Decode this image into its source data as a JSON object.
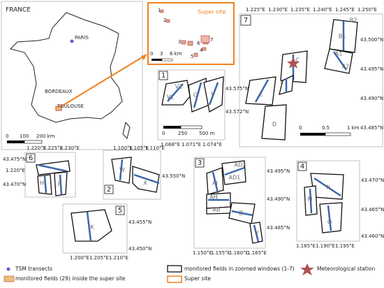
{
  "france": {
    "title": "FRANCE",
    "cities": [
      "PARIS",
      "BORDEAUX",
      "TOULOUSE"
    ],
    "scale": [
      "0",
      "100",
      "200 km"
    ]
  },
  "super_site": {
    "title": "Super site",
    "sites": [
      "1",
      "2",
      "3",
      "4",
      "5",
      "6",
      "7"
    ],
    "scale": [
      "0",
      "3",
      "6 km"
    ]
  },
  "panels": [
    {
      "number": "1",
      "fields": [
        "V2",
        "V1",
        "G",
        "U"
      ],
      "lon": [
        "1.068°E",
        "1.071°E",
        "1.074°E"
      ],
      "lat": [
        "43.575°N",
        "43.572°N"
      ],
      "scale": [
        "0",
        "250",
        "500 m"
      ]
    },
    {
      "number": "2",
      "fields": [
        "W",
        "X"
      ],
      "lon": [
        "1.100°E",
        "1.105°E",
        "1.110°E"
      ],
      "lat": [
        "43.550°N"
      ]
    },
    {
      "number": "3",
      "fields": [
        "AD2",
        "AD1",
        "AI",
        "AH",
        "AB",
        "Z",
        "Y"
      ],
      "lon": [
        "1.150°E",
        "1.155°E",
        "1.160°E",
        "1.165°E"
      ],
      "lat": [
        "43.495°N",
        "43.490°N",
        "43.485°N"
      ]
    },
    {
      "number": "4",
      "fields": [
        "N",
        "M",
        "O"
      ],
      "lon": [
        "1.185°E",
        "1.190°E",
        "1.195°E"
      ],
      "lat": [
        "43.470°N",
        "43.465°N",
        "43.460°N"
      ]
    },
    {
      "number": "5",
      "fields": [
        "K"
      ],
      "lon": [
        "1.200°E",
        "1.205°E",
        "1.210°E"
      ],
      "lat": [
        "43.455°N",
        "43.450°N"
      ]
    },
    {
      "number": "6",
      "fields": [
        "H",
        "J"
      ],
      "lon": [
        "1.220°E",
        "1.225°E",
        "1.230°E"
      ],
      "lat": [
        "43.475°N",
        "1.220°E",
        "43.470°N"
      ]
    },
    {
      "number": "7",
      "fields": [
        "B2",
        "B1",
        "A1",
        "A2",
        "C",
        "E",
        "F",
        "D"
      ],
      "lon": [
        "1.225°E",
        "1.230°E",
        "1.235°E",
        "1.240°E",
        "1.245°E",
        "1.250°E"
      ],
      "lat": [
        "43.500°N",
        "43.495°N",
        "43.490°N",
        "43.485°N"
      ],
      "scale": [
        "0",
        "0.5",
        "1 km"
      ]
    }
  ],
  "legend": [
    "TSM transects",
    "monitored fields (29) inside the super site",
    "monitored fields in zoomed windows (1-7)",
    "Super site",
    "Meteorological station"
  ]
}
